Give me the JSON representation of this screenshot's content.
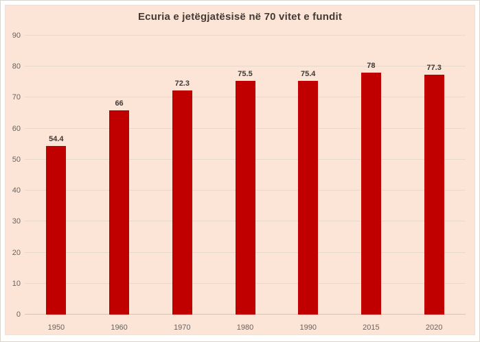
{
  "page": {
    "background": "#ffffff"
  },
  "chart": {
    "background": "#fce4d6",
    "border_color": "#eee2d7"
  },
  "colors": {
    "bar": "#c00000",
    "grid": "#e6d8ca",
    "axis_line": "#d2c4b8",
    "title_text": "#443a34",
    "tick_text": "#68625d",
    "data_label_text": "#3b3835"
  },
  "chart_data": {
    "type": "bar",
    "title": "Ecuria e jetëgjatësisë në 70 vitet e fundit",
    "categories": [
      "1950",
      "1960",
      "1970",
      "1980",
      "1990",
      "2015",
      "2020"
    ],
    "values": [
      54.4,
      66,
      72.3,
      75.5,
      75.4,
      78,
      77.3
    ],
    "value_labels": [
      "54.4",
      "66",
      "72.3",
      "75.5",
      "75.4",
      "78",
      "77.3"
    ],
    "xlabel": "",
    "ylabel": "",
    "ylim": [
      0,
      90
    ],
    "yticks": [
      0,
      10,
      20,
      30,
      40,
      50,
      60,
      70,
      80,
      90
    ],
    "grid": true,
    "legend": false,
    "data_labels_shown": true
  }
}
